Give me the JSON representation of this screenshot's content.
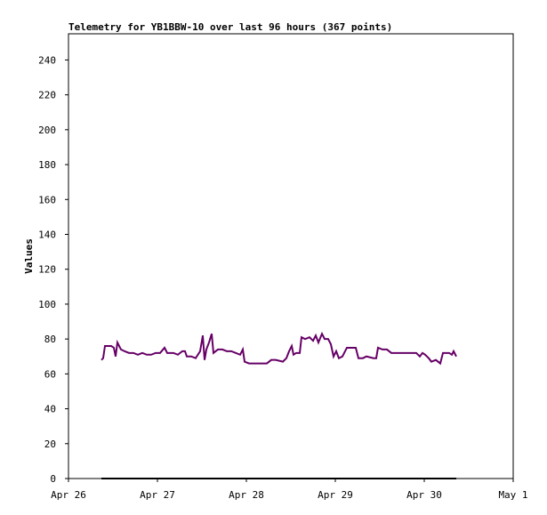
{
  "chart_data": {
    "type": "line",
    "title": "Telemetry for YB1BBW-10 over last 96 hours (367 points)",
    "y_label": "Values",
    "xlim": [
      26,
      31
    ],
    "xticks": [
      {
        "value": 26,
        "label": "Apr 26"
      },
      {
        "value": 27,
        "label": "Apr 27"
      },
      {
        "value": 28,
        "label": "Apr 28"
      },
      {
        "value": 29,
        "label": "Apr 29"
      },
      {
        "value": 30,
        "label": "Apr 30"
      },
      {
        "value": 31,
        "label": "May 1"
      }
    ],
    "ylim": [
      0,
      255
    ],
    "yticks": [
      0,
      20,
      40,
      60,
      80,
      100,
      120,
      140,
      160,
      180,
      200,
      220,
      240
    ],
    "grid": false,
    "series": [
      {
        "color": "#660066",
        "x": [
          26.37,
          26.39,
          26.41,
          26.48,
          26.51,
          26.53,
          26.55,
          26.59,
          26.63,
          26.68,
          26.73,
          26.78,
          26.83,
          26.88,
          26.93,
          26.98,
          27.03,
          27.08,
          27.11,
          27.18,
          27.23,
          27.28,
          27.31,
          27.33,
          27.38,
          27.43,
          27.48,
          27.51,
          27.53,
          27.55,
          27.58,
          27.61,
          27.63,
          27.68,
          27.73,
          27.78,
          27.83,
          27.88,
          27.93,
          27.96,
          27.98,
          28.03,
          28.13,
          28.23,
          28.28,
          28.33,
          28.41,
          28.45,
          28.48,
          28.51,
          28.53,
          28.56,
          28.6,
          28.62,
          28.66,
          28.71,
          28.75,
          28.78,
          28.81,
          28.85,
          28.88,
          28.92,
          28.95,
          28.98,
          29.01,
          29.04,
          29.08,
          29.13,
          29.18,
          29.23,
          29.26,
          29.31,
          29.35,
          29.43,
          29.46,
          29.48,
          29.53,
          29.58,
          29.63,
          29.73,
          29.83,
          29.91,
          29.95,
          29.98,
          30.01,
          30.05,
          30.08,
          30.13,
          30.18,
          30.21,
          30.28,
          30.31,
          30.33,
          30.36
        ],
        "values": [
          68,
          69,
          76,
          76,
          75,
          70,
          78,
          74,
          73,
          72,
          72,
          71,
          72,
          71,
          71,
          72,
          72,
          75,
          72,
          72,
          71,
          73,
          73,
          70,
          70,
          69,
          73,
          82,
          68,
          74,
          78,
          83,
          72,
          74,
          74,
          73,
          73,
          72,
          71,
          74,
          67,
          66,
          66,
          66,
          68,
          68,
          67,
          69,
          73,
          76,
          71,
          72,
          72,
          81,
          80,
          81,
          79,
          82,
          78,
          83,
          80,
          80,
          77,
          70,
          73,
          69,
          70,
          75,
          75,
          75,
          69,
          69,
          70,
          69,
          69,
          75,
          74,
          74,
          72,
          72,
          72,
          72,
          70,
          72,
          71,
          69,
          67,
          68,
          66,
          72,
          72,
          71,
          73,
          70
        ]
      },
      {
        "color": "#000000",
        "x": [
          26.37,
          30.36
        ],
        "values": [
          0,
          0
        ]
      }
    ]
  }
}
